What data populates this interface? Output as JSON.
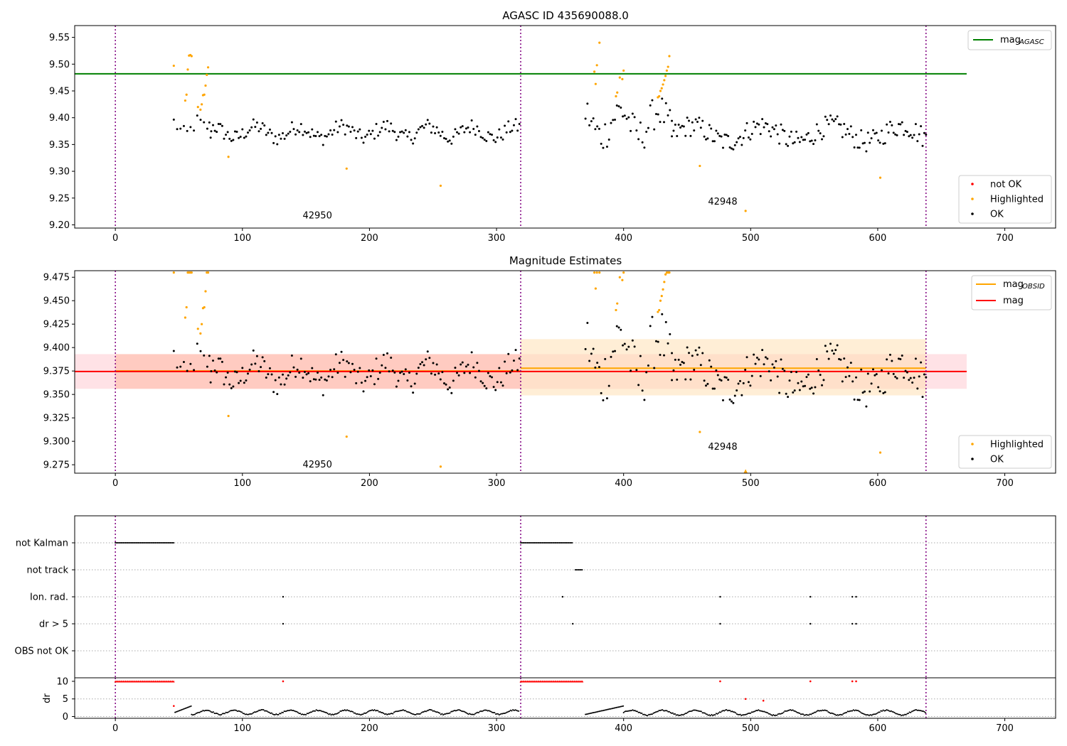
{
  "chart_data": [
    {
      "type": "scatter",
      "title": "AGASC ID 435690088.0",
      "xlabel": "",
      "ylabel": "",
      "xlim": [
        -32,
        740
      ],
      "ylim": [
        9.194,
        9.572
      ],
      "x_ticks": [
        0,
        100,
        200,
        300,
        400,
        500,
        600,
        700
      ],
      "y_ticks": [
        9.2,
        9.25,
        9.3,
        9.35,
        9.4,
        9.45,
        9.5,
        9.55
      ],
      "obs_boundaries": [
        0,
        319,
        638
      ],
      "annotations": [
        {
          "text": "42950",
          "x": 159,
          "y": 9.212
        },
        {
          "text": "42948",
          "x": 478,
          "y": 9.238
        }
      ],
      "lines": [
        {
          "name": "mag_AGASC",
          "y": 9.482,
          "x_range": [
            -32,
            670
          ],
          "color": "#008000"
        }
      ],
      "series": [
        {
          "name": "not OK",
          "color": "#ff0000",
          "points": []
        },
        {
          "name": "Highlighted",
          "color": "#ffa500",
          "points": [
            [
              46,
              9.497
            ],
            [
              55,
              9.432
            ],
            [
              56,
              9.443
            ],
            [
              57,
              9.49
            ],
            [
              58,
              9.516
            ],
            [
              59,
              9.517
            ],
            [
              60,
              9.515
            ],
            [
              65,
              9.42
            ],
            [
              67,
              9.415
            ],
            [
              68,
              9.425
            ],
            [
              69,
              9.442
            ],
            [
              70,
              9.443
            ],
            [
              71,
              9.46
            ],
            [
              72,
              9.48
            ],
            [
              73,
              9.494
            ],
            [
              89,
              9.327
            ],
            [
              182,
              9.305
            ],
            [
              256,
              9.273
            ],
            [
              377,
              9.486
            ],
            [
              378,
              9.463
            ],
            [
              379,
              9.498
            ],
            [
              381,
              9.54
            ],
            [
              394,
              9.44
            ],
            [
              395,
              9.447
            ],
            [
              397,
              9.475
            ],
            [
              399,
              9.472
            ],
            [
              400,
              9.488
            ],
            [
              427,
              9.438
            ],
            [
              428,
              9.44
            ],
            [
              429,
              9.45
            ],
            [
              430,
              9.455
            ],
            [
              431,
              9.462
            ],
            [
              432,
              9.47
            ],
            [
              433,
              9.478
            ],
            [
              434,
              9.488
            ],
            [
              435,
              9.495
            ],
            [
              436,
              9.515
            ],
            [
              460,
              9.31
            ],
            [
              496,
              9.226
            ],
            [
              602,
              9.288
            ]
          ]
        },
        {
          "name": "OK",
          "color": "#000000",
          "segments": [
            {
              "x0": 46,
              "x1": 75,
              "n": 12,
              "base": 9.38,
              "amp": 0.02,
              "period": 20
            },
            {
              "x0": 74,
              "x1": 318,
              "n": 170,
              "base": 9.373,
              "amp": 0.018,
              "period": 34
            },
            {
              "x0": 370,
              "x1": 438,
              "n": 45,
              "base": 9.39,
              "amp": 0.04,
              "period": 30
            },
            {
              "x0": 438,
              "x1": 638,
              "n": 150,
              "base": 9.37,
              "amp": 0.025,
              "period": 55
            }
          ]
        }
      ],
      "legend": [
        {
          "label": "mag_AGASC",
          "placement": "top-right"
        },
        {
          "label": "not OK",
          "placement": "bottom-right"
        },
        {
          "label": "Highlighted",
          "placement": "bottom-right"
        },
        {
          "label": "OK",
          "placement": "bottom-right"
        }
      ]
    },
    {
      "type": "scatter",
      "title": "Magnitude Estimates",
      "xlabel": "",
      "ylabel": "",
      "xlim": [
        -32,
        740
      ],
      "ylim": [
        9.266,
        9.482
      ],
      "x_ticks": [
        0,
        100,
        200,
        300,
        400,
        500,
        600,
        700
      ],
      "y_ticks": [
        9.275,
        9.3,
        9.325,
        9.35,
        9.375,
        9.4,
        9.425,
        9.45,
        9.475
      ],
      "obs_boundaries": [
        0,
        319,
        638
      ],
      "annotations": [
        {
          "text": "42950",
          "x": 159,
          "y": 9.272
        },
        {
          "text": "42948",
          "x": 478,
          "y": 9.291
        }
      ],
      "lines": [
        {
          "name": "mag_OBSID",
          "color": "#ffa500",
          "segments": [
            [
              0,
              319,
              9.375
            ],
            [
              319,
              638,
              9.378
            ]
          ]
        },
        {
          "name": "mag",
          "color": "#ff0000",
          "y": 9.3745,
          "x_range": [
            -32,
            670
          ]
        }
      ],
      "bands": [
        {
          "color": "#ffb6c1",
          "x_range": [
            -32,
            670
          ],
          "y_range": [
            9.356,
            9.393
          ]
        },
        {
          "color": "#ffdead",
          "x_range": [
            319,
            638
          ],
          "y_range": [
            9.349,
            9.409
          ]
        },
        {
          "color": "#ffa07a",
          "x_range": [
            0,
            319
          ],
          "y_range": [
            9.356,
            9.393
          ]
        }
      ],
      "series": [
        {
          "name": "Highlighted",
          "color": "#ffa500",
          "points": [
            [
              46,
              9.48
            ],
            [
              55,
              9.432
            ],
            [
              56,
              9.443
            ],
            [
              57,
              9.48
            ],
            [
              58,
              9.48
            ],
            [
              59,
              9.48
            ],
            [
              60,
              9.48
            ],
            [
              65,
              9.42
            ],
            [
              67,
              9.415
            ],
            [
              68,
              9.425
            ],
            [
              69,
              9.442
            ],
            [
              70,
              9.443
            ],
            [
              71,
              9.46
            ],
            [
              72,
              9.48
            ],
            [
              73,
              9.48
            ],
            [
              89,
              9.327
            ],
            [
              182,
              9.305
            ],
            [
              256,
              9.273
            ],
            [
              377,
              9.48
            ],
            [
              378,
              9.463
            ],
            [
              379,
              9.48
            ],
            [
              381,
              9.48
            ],
            [
              394,
              9.44
            ],
            [
              395,
              9.447
            ],
            [
              397,
              9.475
            ],
            [
              399,
              9.472
            ],
            [
              400,
              9.48
            ],
            [
              427,
              9.438
            ],
            [
              428,
              9.44
            ],
            [
              429,
              9.45
            ],
            [
              430,
              9.455
            ],
            [
              431,
              9.462
            ],
            [
              432,
              9.47
            ],
            [
              433,
              9.478
            ],
            [
              434,
              9.48
            ],
            [
              435,
              9.48
            ],
            [
              436,
              9.48
            ],
            [
              460,
              9.31
            ],
            [
              496,
              9.268
            ],
            [
              602,
              9.288
            ]
          ]
        },
        {
          "name": "OK",
          "color": "#000000",
          "same_as_panel": 0
        }
      ],
      "legend": [
        {
          "label": "mag_OBSID",
          "placement": "top-right"
        },
        {
          "label": "mag",
          "placement": "top-right"
        },
        {
          "label": "Highlighted",
          "placement": "bottom-right"
        },
        {
          "label": "OK",
          "placement": "bottom-right"
        }
      ]
    },
    {
      "type": "scatter",
      "title": "",
      "xlim": [
        -32,
        740
      ],
      "categories": [
        "not Kalman",
        "not track",
        "Ion. rad.",
        "dr > 5",
        "OBS not OK"
      ],
      "flag_runs": [
        {
          "category": "not Kalman",
          "x0": 0,
          "x1": 46
        },
        {
          "category": "not Kalman",
          "x0": 319,
          "x1": 360
        },
        {
          "category": "not track",
          "x0": 362,
          "x1": 368
        }
      ],
      "flag_points": [
        {
          "category": "Ion. rad.",
          "x": [
            132,
            352,
            476,
            547,
            580,
            583
          ]
        },
        {
          "category": "dr > 5",
          "x": [
            132,
            360,
            476,
            547,
            580,
            583
          ]
        }
      ]
    },
    {
      "type": "scatter",
      "title": "",
      "xlim": [
        -32,
        740
      ],
      "ylim": [
        -0.5,
        11
      ],
      "ylabel": "dr",
      "y_ticks": [
        0,
        5,
        10
      ],
      "x_ticks": [
        0,
        100,
        200,
        300,
        400,
        500,
        600,
        700
      ],
      "obs_boundaries": [
        0,
        319,
        638
      ],
      "red_runs": [
        [
          0,
          46
        ],
        [
          319,
          368
        ]
      ],
      "red_points": [
        [
          132,
          10
        ],
        [
          476,
          10
        ],
        [
          547,
          10
        ],
        [
          580,
          10
        ],
        [
          583,
          10
        ],
        [
          46,
          3
        ],
        [
          496,
          5
        ],
        [
          510,
          4.5
        ]
      ],
      "black_segments": [
        {
          "x0": 47,
          "x1": 60,
          "y0": 1.2,
          "y1": 3.0
        },
        {
          "x0": 60,
          "x1": 318,
          "base": 1.2,
          "amp": 0.6,
          "period": 22
        },
        {
          "x0": 370,
          "x1": 400,
          "y0": 0.6,
          "y1": 3.0
        },
        {
          "x0": 400,
          "x1": 638,
          "base": 1.1,
          "amp": 0.7,
          "period": 25
        }
      ]
    }
  ]
}
